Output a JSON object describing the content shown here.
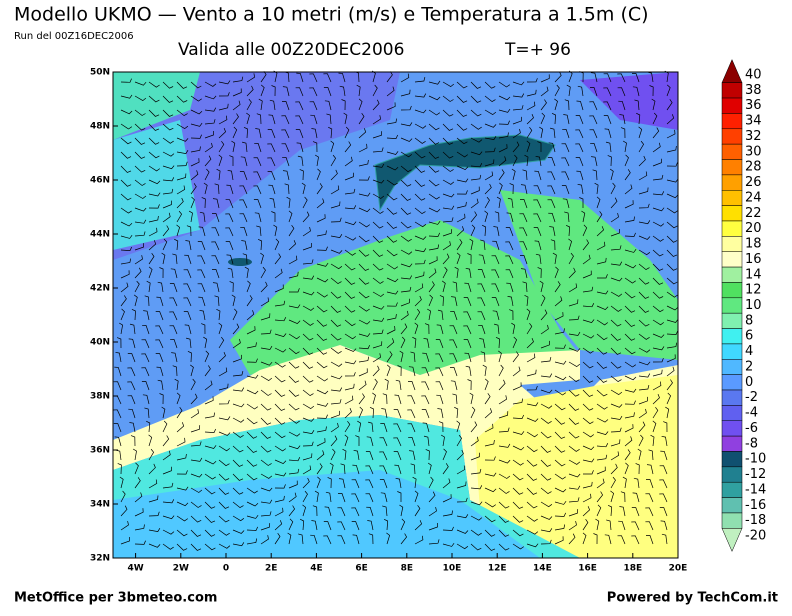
{
  "header": {
    "title": "Modello UKMO — Vento a 10 metri (m/s) e Temperatura a 1.5m (C)",
    "run": "Run del 00Z16DEC2006",
    "valid": "Valida alle 00Z20DEC2006",
    "lead": "T=+ 96"
  },
  "map": {
    "lat_labels": [
      "50N",
      "48N",
      "46N",
      "44N",
      "42N",
      "40N",
      "38N",
      "36N",
      "34N",
      "32N"
    ],
    "lon_labels": [
      "4W",
      "2W",
      "0",
      "2E",
      "4E",
      "6E",
      "8E",
      "10E",
      "12E",
      "14E",
      "16E",
      "18E",
      "20E"
    ]
  },
  "colorbar": {
    "labels": [
      40,
      38,
      36,
      34,
      32,
      30,
      28,
      26,
      24,
      22,
      20,
      18,
      16,
      14,
      12,
      10,
      8,
      6,
      4,
      2,
      0,
      -2,
      -4,
      -6,
      -8,
      -10,
      -12,
      -14,
      -16,
      -18,
      -20
    ],
    "colors": [
      "#8b0000",
      "#c00000",
      "#e00000",
      "#ff2000",
      "#ff4000",
      "#ff6000",
      "#ff8000",
      "#ffa000",
      "#ffc000",
      "#ffe000",
      "#ffff40",
      "#ffffa0",
      "#ffffc8",
      "#a0f0a0",
      "#50e060",
      "#60e880",
      "#80f0b0",
      "#40f0f0",
      "#40d8ff",
      "#50b8ff",
      "#5a9aff",
      "#5a78f0",
      "#6060f0",
      "#7050f0",
      "#9040e0",
      "#105070",
      "#208090",
      "#30a0a0",
      "#60c0b0",
      "#90e0b0",
      "#c0f0c0"
    ]
  },
  "footer": {
    "left": "MetOffice per 3bmeteo.com",
    "right": "Powered by TechCom.it"
  }
}
